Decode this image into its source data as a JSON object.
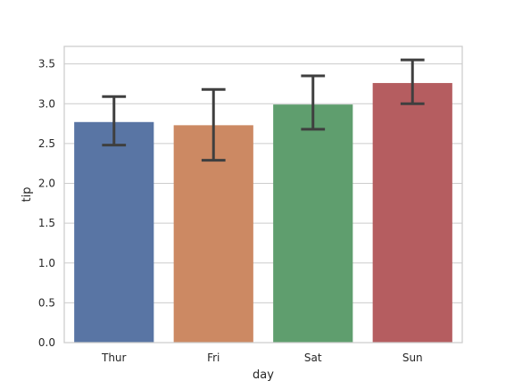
{
  "chart_data": {
    "type": "bar",
    "title": "",
    "xlabel": "day",
    "ylabel": "tip",
    "categories": [
      "Thur",
      "Fri",
      "Sat",
      "Sun"
    ],
    "values": [
      2.77,
      2.73,
      2.99,
      3.26
    ],
    "error_low": [
      2.48,
      2.29,
      2.68,
      3.0
    ],
    "error_high": [
      3.09,
      3.18,
      3.35,
      3.55
    ],
    "ylim": [
      0,
      3.72
    ],
    "yticks": [
      0.0,
      0.5,
      1.0,
      1.5,
      2.0,
      2.5,
      3.0,
      3.5
    ],
    "ytick_labels": [
      "0.0",
      "0.5",
      "1.0",
      "1.5",
      "2.0",
      "2.5",
      "3.0",
      "3.5"
    ],
    "grid": true,
    "colors": [
      "#5975A4",
      "#CC8963",
      "#5F9E6E",
      "#B55D60"
    ],
    "errorbar_color": "#3f3f3f",
    "grid_color": "#cccccc"
  }
}
